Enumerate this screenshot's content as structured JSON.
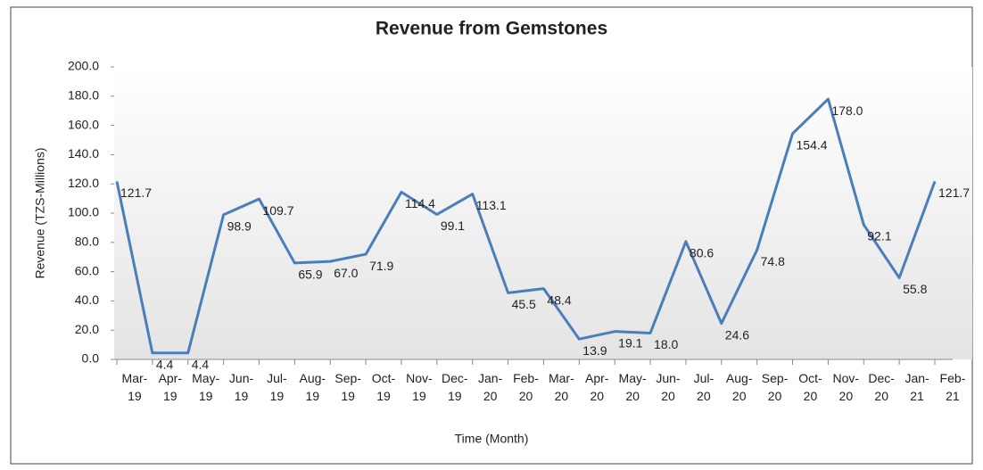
{
  "chart_data": {
    "type": "line",
    "title": "Revenue from Gemstones",
    "x_label": "Time (Month)",
    "y_label": "Revenue (TZS-Millions)",
    "categories": [
      "Mar-19",
      "Apr-19",
      "May-19",
      "Jun-19",
      "Jul-19",
      "Aug-19",
      "Sep-19",
      "Oct-19",
      "Nov-19",
      "Dec-19",
      "Jan-20",
      "Feb-20",
      "Mar-20",
      "Apr-20",
      "May-20",
      "Jun-20",
      "Jul-20",
      "Aug-20",
      "Sep-20",
      "Oct-20",
      "Nov-20",
      "Dec-20",
      "Jan-21",
      "Feb-21"
    ],
    "series": [
      {
        "color": "#4a7ebb",
        "values": [
          121.7,
          4.4,
          4.4,
          98.9,
          109.7,
          65.9,
          67.0,
          71.9,
          114.4,
          99.1,
          113.1,
          45.5,
          48.4,
          13.9,
          19.1,
          18.0,
          80.6,
          24.6,
          74.8,
          154.4,
          178.0,
          92.1,
          55.8,
          121.7
        ],
        "value_labels": [
          "121.7",
          "4.4",
          "4.4",
          "98.9",
          "109.7",
          "65.9",
          "67.0",
          "71.9",
          "114.4",
          "99.1",
          "113.1",
          "45.5",
          "48.4",
          "13.9",
          "19.1",
          "18.0",
          "80.6",
          "24.6",
          "74.8",
          "154.4",
          "178.0",
          "92.1",
          "55.8",
          "121.7"
        ]
      }
    ],
    "ylim": [
      0,
      200
    ],
    "yticks": [
      {
        "value": 0,
        "label": "0.0"
      },
      {
        "value": 20,
        "label": "20.0"
      },
      {
        "value": 40,
        "label": "40.0"
      },
      {
        "value": 60,
        "label": "60.0"
      },
      {
        "value": 80,
        "label": "80.0"
      },
      {
        "value": 100,
        "label": "100.0"
      },
      {
        "value": 120,
        "label": "120.0"
      },
      {
        "value": 140,
        "label": "140.0"
      },
      {
        "value": 160,
        "label": "160.0"
      },
      {
        "value": 180,
        "label": "180.0"
      },
      {
        "value": 200,
        "label": "200.0"
      }
    ],
    "grid": false
  }
}
